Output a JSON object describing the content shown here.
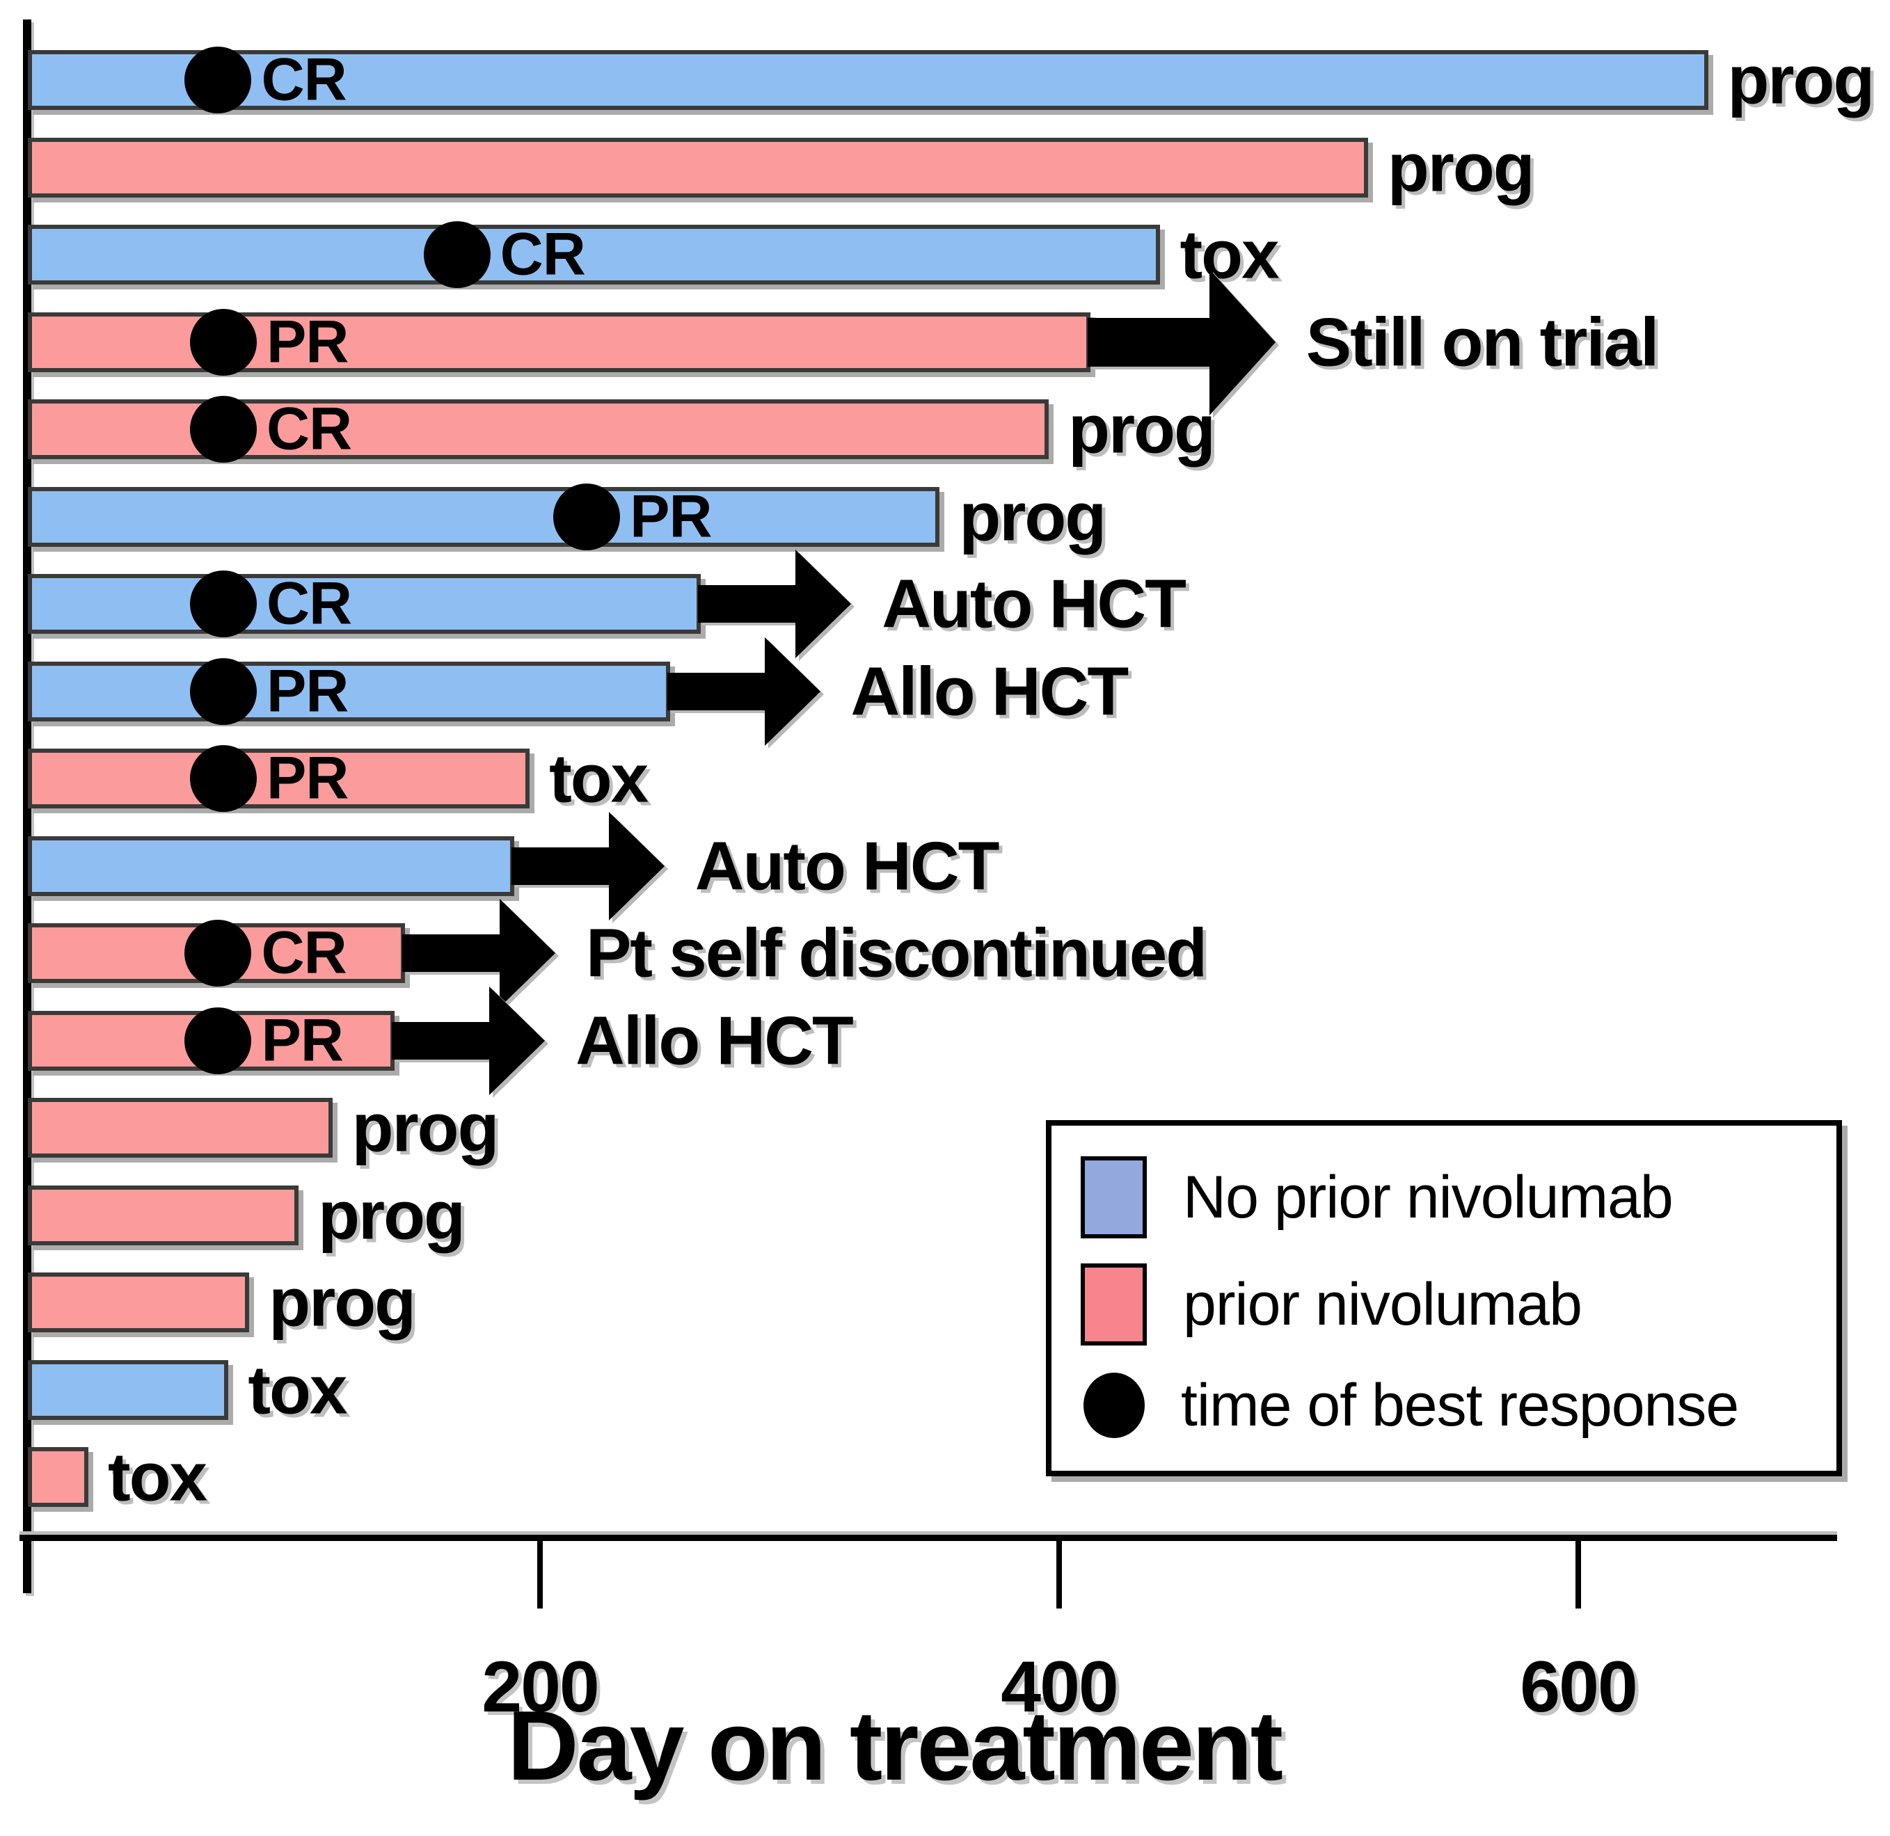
{
  "chart_data": {
    "type": "bar",
    "variant": "swimmer-plot",
    "title": "",
    "xlabel": "Day on treatment",
    "x_ticks": [
      200,
      400,
      600
    ],
    "xlim": [
      0,
      715
    ],
    "grid": false,
    "legend": {
      "position": "bottom-right",
      "items": [
        {
          "key": "no_prior",
          "label": "No prior nivolumab",
          "swatch": "rect",
          "color": "#93a9de"
        },
        {
          "key": "prior",
          "label": "prior nivolumab",
          "swatch": "rect",
          "color": "#f8858d"
        },
        {
          "key": "best_response",
          "label": "time of best response",
          "swatch": "dot",
          "color": "#000000"
        }
      ]
    },
    "colors": {
      "no_prior_bar": "#8fbff2",
      "prior_bar": "#fb9b9b",
      "bar_border": "#3a3a38",
      "marker": "#000000",
      "axis": "#000000"
    },
    "patients": [
      {
        "group": "no_prior",
        "days": 650,
        "response": {
          "label": "CR",
          "day": 76
        },
        "outcome": "prog",
        "arrow": false
      },
      {
        "group": "prior",
        "days": 519,
        "response": null,
        "outcome": "prog",
        "arrow": false
      },
      {
        "group": "no_prior",
        "days": 439,
        "response": {
          "label": "CR",
          "day": 168
        },
        "outcome": "tox",
        "arrow": false
      },
      {
        "group": "prior",
        "days": 412,
        "response": {
          "label": "PR",
          "day": 78
        },
        "outcome": "Still on trial",
        "arrow": "large"
      },
      {
        "group": "prior",
        "days": 396,
        "response": {
          "label": "CR",
          "day": 78
        },
        "outcome": "prog",
        "arrow": false
      },
      {
        "group": "no_prior",
        "days": 354,
        "response": {
          "label": "PR",
          "day": 218
        },
        "outcome": "prog",
        "arrow": false
      },
      {
        "group": "no_prior",
        "days": 262,
        "response": {
          "label": "CR",
          "day": 78
        },
        "outcome": "Auto HCT",
        "arrow": "normal"
      },
      {
        "group": "no_prior",
        "days": 250,
        "response": {
          "label": "PR",
          "day": 78
        },
        "outcome": "Allo HCT",
        "arrow": "normal"
      },
      {
        "group": "prior",
        "days": 196,
        "response": {
          "label": "PR",
          "day": 78
        },
        "outcome": "tox",
        "arrow": false
      },
      {
        "group": "no_prior",
        "days": 190,
        "response": null,
        "outcome": "Auto HCT",
        "arrow": "normal"
      },
      {
        "group": "prior",
        "days": 148,
        "response": {
          "label": "CR",
          "day": 76
        },
        "outcome": "Pt self discontinued",
        "arrow": "normal"
      },
      {
        "group": "prior",
        "days": 144,
        "response": {
          "label": "PR",
          "day": 76
        },
        "outcome": "Allo HCT",
        "arrow": "normal"
      },
      {
        "group": "prior",
        "days": 120,
        "response": null,
        "outcome": "prog",
        "arrow": false
      },
      {
        "group": "prior",
        "days": 107,
        "response": null,
        "outcome": "prog",
        "arrow": false
      },
      {
        "group": "prior",
        "days": 88,
        "response": null,
        "outcome": "prog",
        "arrow": false
      },
      {
        "group": "no_prior",
        "days": 80,
        "response": null,
        "outcome": "tox",
        "arrow": false
      },
      {
        "group": "prior",
        "days": 26,
        "response": null,
        "outcome": "tox",
        "arrow": false
      }
    ]
  }
}
